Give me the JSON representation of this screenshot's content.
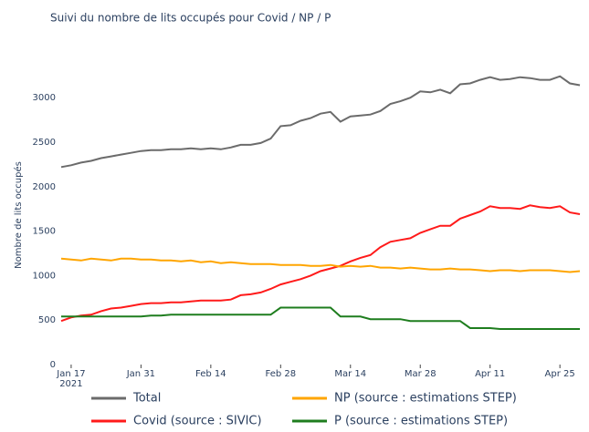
{
  "chart_data": {
    "type": "line",
    "title": "Suivi du nombre de lits occupés pour Covid / NP / P",
    "y_label": "Nombre de lits occupés",
    "x": [
      "2021-01-15",
      "2021-01-17",
      "2021-01-19",
      "2021-01-21",
      "2021-01-23",
      "2021-01-25",
      "2021-01-27",
      "2021-01-29",
      "2021-01-31",
      "2021-02-02",
      "2021-02-04",
      "2021-02-06",
      "2021-02-08",
      "2021-02-10",
      "2021-02-12",
      "2021-02-14",
      "2021-02-16",
      "2021-02-18",
      "2021-02-20",
      "2021-02-22",
      "2021-02-24",
      "2021-02-26",
      "2021-02-28",
      "2021-03-02",
      "2021-03-04",
      "2021-03-06",
      "2021-03-08",
      "2021-03-10",
      "2021-03-12",
      "2021-03-14",
      "2021-03-16",
      "2021-03-18",
      "2021-03-20",
      "2021-03-22",
      "2021-03-24",
      "2021-03-26",
      "2021-03-28",
      "2021-03-30",
      "2021-04-01",
      "2021-04-03",
      "2021-04-05",
      "2021-04-07",
      "2021-04-09",
      "2021-04-11",
      "2021-04-13",
      "2021-04-15",
      "2021-04-17",
      "2021-04-19",
      "2021-04-21",
      "2021-04-23",
      "2021-04-25",
      "2021-04-27",
      "2021-04-29"
    ],
    "series": [
      {
        "name": "Total",
        "color": "#6b6b6b",
        "values": [
          2220,
          2240,
          2270,
          2290,
          2320,
          2340,
          2360,
          2380,
          2400,
          2410,
          2410,
          2420,
          2420,
          2430,
          2420,
          2430,
          2420,
          2440,
          2470,
          2470,
          2490,
          2540,
          2680,
          2690,
          2740,
          2770,
          2820,
          2840,
          2730,
          2790,
          2800,
          2810,
          2850,
          2930,
          2960,
          3000,
          3070,
          3060,
          3090,
          3050,
          3150,
          3160,
          3200,
          3230,
          3200,
          3210,
          3230,
          3220,
          3200,
          3200,
          3240,
          3160,
          3140
        ]
      },
      {
        "name": "Covid (source : SIVIC)",
        "color": "#ff1a1a",
        "values": [
          490,
          530,
          550,
          560,
          600,
          630,
          640,
          660,
          680,
          690,
          690,
          700,
          700,
          710,
          720,
          720,
          720,
          730,
          780,
          790,
          810,
          850,
          900,
          930,
          960,
          1000,
          1050,
          1080,
          1110,
          1160,
          1200,
          1230,
          1320,
          1380,
          1400,
          1420,
          1480,
          1520,
          1560,
          1560,
          1640,
          1680,
          1720,
          1780,
          1760,
          1760,
          1750,
          1790,
          1770,
          1760,
          1780,
          1710,
          1690
        ]
      },
      {
        "name": "NP (source : estimations STEP)",
        "color": "#ffa500",
        "values": [
          1190,
          1180,
          1170,
          1190,
          1180,
          1170,
          1190,
          1190,
          1180,
          1180,
          1170,
          1170,
          1160,
          1170,
          1150,
          1160,
          1140,
          1150,
          1140,
          1130,
          1130,
          1130,
          1120,
          1120,
          1120,
          1110,
          1110,
          1120,
          1100,
          1110,
          1100,
          1110,
          1090,
          1090,
          1080,
          1090,
          1080,
          1070,
          1070,
          1080,
          1070,
          1070,
          1060,
          1050,
          1060,
          1060,
          1050,
          1060,
          1060,
          1060,
          1050,
          1040,
          1050
        ]
      },
      {
        "name": "P (source : estimations STEP)",
        "color": "#1e7d1e",
        "values": [
          540,
          540,
          540,
          540,
          540,
          540,
          540,
          540,
          540,
          550,
          550,
          560,
          560,
          560,
          560,
          560,
          560,
          560,
          560,
          560,
          560,
          560,
          640,
          640,
          640,
          640,
          640,
          640,
          540,
          540,
          540,
          510,
          510,
          510,
          510,
          490,
          490,
          490,
          490,
          490,
          490,
          410,
          410,
          410,
          400,
          400,
          400,
          400,
          400,
          400,
          400,
          400,
          400
        ]
      }
    ],
    "xlim": [
      "2021-01-15",
      "2021-04-29"
    ],
    "xticks": [
      {
        "value": "2021-01-17",
        "label": "Jan 17\n2021"
      },
      {
        "value": "2021-01-31",
        "label": "Jan 31"
      },
      {
        "value": "2021-02-14",
        "label": "Feb 14"
      },
      {
        "value": "2021-02-28",
        "label": "Feb 28"
      },
      {
        "value": "2021-03-14",
        "label": "Mar 14"
      },
      {
        "value": "2021-03-28",
        "label": "Mar 28"
      },
      {
        "value": "2021-04-11",
        "label": "Apr 11"
      },
      {
        "value": "2021-04-25",
        "label": "Apr 25"
      }
    ],
    "ylim": [
      0,
      3350
    ],
    "yticks": [
      0,
      500,
      1000,
      1500,
      2000,
      2500,
      3000
    ],
    "grid": false
  }
}
